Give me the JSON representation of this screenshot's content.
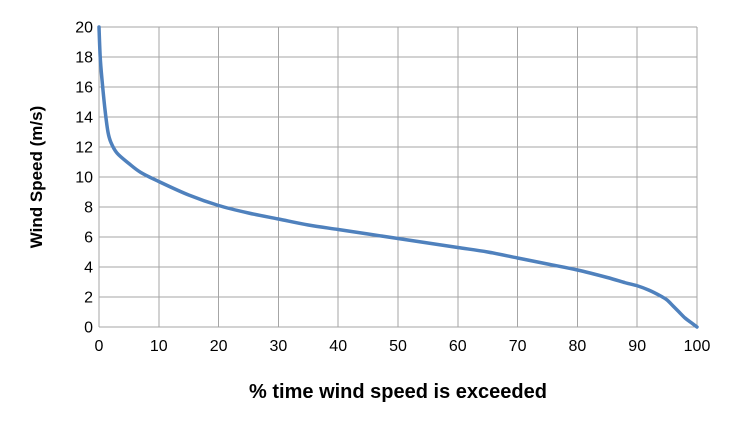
{
  "chart_data": {
    "type": "line",
    "title": "",
    "xlabel": "% time wind speed is exceeded",
    "ylabel": "Wind Speed (m/s)",
    "xlim": [
      0,
      100
    ],
    "ylim": [
      0,
      20
    ],
    "x_ticks": [
      0,
      10,
      20,
      30,
      40,
      50,
      60,
      70,
      80,
      90,
      100
    ],
    "y_ticks": [
      0,
      2,
      4,
      6,
      8,
      10,
      12,
      14,
      16,
      18,
      20
    ],
    "grid": true,
    "legend": "none",
    "series": [
      {
        "color": "#4f81bd",
        "x": [
          0,
          0.2,
          0.5,
          1,
          1.5,
          2,
          3,
          5,
          7,
          10,
          15,
          20,
          25,
          30,
          35,
          40,
          45,
          50,
          55,
          60,
          65,
          70,
          75,
          80,
          85,
          88,
          90,
          92,
          94,
          95,
          96,
          97,
          98,
          99,
          100
        ],
        "y": [
          20,
          18,
          16.5,
          14.5,
          13,
          12.3,
          11.6,
          10.9,
          10.3,
          9.7,
          8.8,
          8.1,
          7.6,
          7.2,
          6.8,
          6.5,
          6.2,
          5.9,
          5.6,
          5.3,
          5.0,
          4.6,
          4.2,
          3.8,
          3.3,
          2.95,
          2.75,
          2.45,
          2.05,
          1.8,
          1.4,
          1.0,
          0.6,
          0.3,
          0.0
        ]
      }
    ]
  }
}
